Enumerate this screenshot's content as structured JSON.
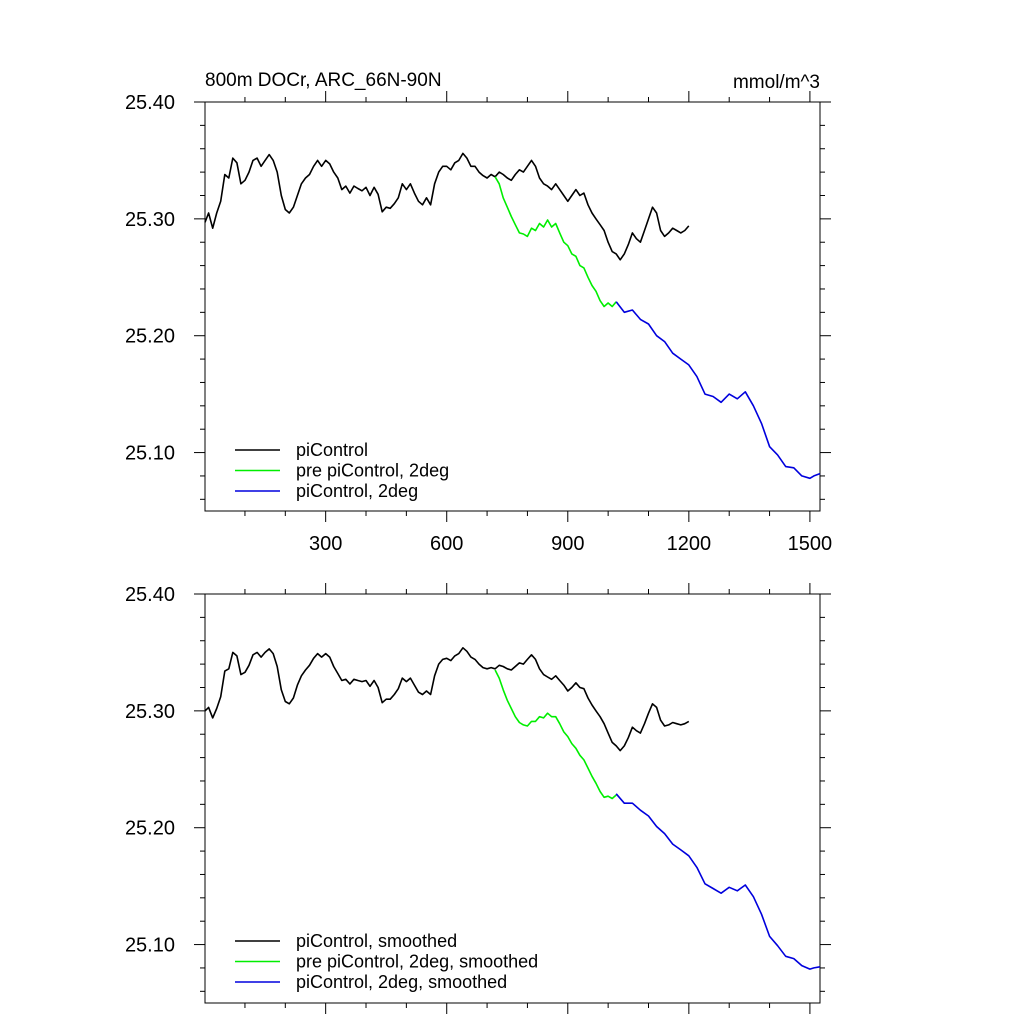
{
  "figure": {
    "title_left": "800m DOCr, ARC_66N-90N",
    "title_right": "mmol/m^3"
  },
  "chart_data": [
    {
      "type": "line",
      "panel": "top",
      "xlim": [
        1,
        1525
      ],
      "ylim": [
        25.05,
        25.4
      ],
      "x_ticks": [
        300,
        600,
        900,
        1200,
        1500
      ],
      "x_tick_labels": [
        "300",
        "600",
        "900",
        "1200",
        "1500"
      ],
      "y_ticks": [
        25.1,
        25.2,
        25.3,
        25.4
      ],
      "y_tick_labels": [
        "25.10",
        "25.20",
        "25.30",
        "25.40"
      ],
      "grid": false,
      "legend_position": "bottom-left",
      "series": [
        {
          "name": "piControl",
          "color": "#000000",
          "x": [
            1,
            10,
            20,
            30,
            40,
            50,
            60,
            70,
            80,
            90,
            100,
            110,
            120,
            130,
            140,
            150,
            160,
            170,
            180,
            190,
            200,
            210,
            220,
            230,
            240,
            250,
            260,
            270,
            280,
            290,
            300,
            310,
            320,
            330,
            340,
            350,
            360,
            370,
            380,
            390,
            400,
            410,
            420,
            430,
            440,
            450,
            460,
            470,
            480,
            490,
            500,
            510,
            520,
            530,
            540,
            550,
            560,
            570,
            580,
            590,
            600,
            610,
            620,
            630,
            640,
            650,
            660,
            670,
            680,
            690,
            700,
            710,
            720,
            730,
            740,
            750,
            760,
            770,
            780,
            790,
            800,
            810,
            820,
            830,
            840,
            850,
            860,
            870,
            880,
            890,
            900,
            910,
            920,
            930,
            940,
            950,
            960,
            970,
            980,
            990,
            1000,
            1010,
            1020,
            1030,
            1040,
            1050,
            1060,
            1070,
            1080,
            1090,
            1100,
            1110,
            1120,
            1130,
            1140,
            1150,
            1160,
            1170,
            1180,
            1190,
            1200
          ],
          "y": [
            25.297,
            25.305,
            25.292,
            25.305,
            25.315,
            25.338,
            25.335,
            25.352,
            25.348,
            25.33,
            25.333,
            25.34,
            25.35,
            25.352,
            25.345,
            25.35,
            25.355,
            25.35,
            25.34,
            25.32,
            25.308,
            25.305,
            25.31,
            25.32,
            25.33,
            25.335,
            25.338,
            25.345,
            25.35,
            25.345,
            25.35,
            25.347,
            25.34,
            25.335,
            25.325,
            25.328,
            25.322,
            25.328,
            25.326,
            25.324,
            25.327,
            25.32,
            25.327,
            25.321,
            25.306,
            25.31,
            25.309,
            25.313,
            25.318,
            25.33,
            25.325,
            25.33,
            25.322,
            25.315,
            25.312,
            25.318,
            25.312,
            25.33,
            25.34,
            25.345,
            25.345,
            25.342,
            25.348,
            25.35,
            25.356,
            25.352,
            25.345,
            25.345,
            25.34,
            25.337,
            25.335,
            25.338,
            25.336,
            25.34,
            25.338,
            25.335,
            25.333,
            25.338,
            25.342,
            25.34,
            25.345,
            25.35,
            25.345,
            25.335,
            25.33,
            25.328,
            25.325,
            25.33,
            25.325,
            25.32,
            25.315,
            25.32,
            25.325,
            25.32,
            25.322,
            25.312,
            25.305,
            25.3,
            25.295,
            25.29,
            25.28,
            25.272,
            25.27,
            25.265,
            25.27,
            25.278,
            25.288,
            25.283,
            25.28,
            25.29,
            25.3,
            25.31,
            25.305,
            25.29,
            25.285,
            25.288,
            25.292,
            25.29,
            25.288,
            25.29,
            25.294
          ]
        },
        {
          "name": "pre piControl, 2deg",
          "color": "#00ee00",
          "x": [
            720,
            730,
            740,
            750,
            760,
            770,
            780,
            790,
            800,
            810,
            820,
            830,
            840,
            850,
            860,
            870,
            880,
            890,
            900,
            910,
            920,
            930,
            940,
            950,
            960,
            970,
            980,
            990,
            1000,
            1010,
            1020
          ],
          "y": [
            25.336,
            25.33,
            25.318,
            25.31,
            25.302,
            25.295,
            25.288,
            25.287,
            25.285,
            25.292,
            25.29,
            25.296,
            25.293,
            25.299,
            25.293,
            25.296,
            25.288,
            25.28,
            25.277,
            25.27,
            25.268,
            25.26,
            25.258,
            25.25,
            25.243,
            25.238,
            25.23,
            25.225,
            25.228,
            25.225,
            25.229
          ]
        },
        {
          "name": "piControl, 2deg",
          "color": "#0000dd",
          "x": [
            1020,
            1040,
            1060,
            1080,
            1100,
            1120,
            1140,
            1160,
            1180,
            1200,
            1220,
            1240,
            1260,
            1280,
            1300,
            1320,
            1340,
            1360,
            1380,
            1400,
            1420,
            1440,
            1460,
            1480,
            1500,
            1510,
            1525
          ],
          "y": [
            25.229,
            25.22,
            25.222,
            25.214,
            25.21,
            25.2,
            25.195,
            25.185,
            25.18,
            25.175,
            25.165,
            25.15,
            25.148,
            25.143,
            25.15,
            25.146,
            25.152,
            25.14,
            25.125,
            25.105,
            25.098,
            25.088,
            25.087,
            25.08,
            25.078,
            25.08,
            25.082
          ]
        }
      ]
    },
    {
      "type": "line",
      "panel": "bottom",
      "xlim": [
        1,
        1525
      ],
      "ylim": [
        25.05,
        25.4
      ],
      "x_ticks": [
        300,
        600,
        900,
        1200,
        1500
      ],
      "y_ticks": [
        25.1,
        25.2,
        25.3,
        25.4
      ],
      "y_tick_labels": [
        "25.10",
        "25.20",
        "25.30",
        "25.40"
      ],
      "grid": false,
      "legend_position": "bottom-left",
      "series": [
        {
          "name": "piControl, smoothed",
          "color": "#000000",
          "x": [
            1,
            10,
            20,
            30,
            40,
            50,
            60,
            70,
            80,
            90,
            100,
            110,
            120,
            130,
            140,
            150,
            160,
            170,
            180,
            190,
            200,
            210,
            220,
            230,
            240,
            250,
            260,
            270,
            280,
            290,
            300,
            310,
            320,
            330,
            340,
            350,
            360,
            370,
            380,
            390,
            400,
            410,
            420,
            430,
            440,
            450,
            460,
            470,
            480,
            490,
            500,
            510,
            520,
            530,
            540,
            550,
            560,
            570,
            580,
            590,
            600,
            610,
            620,
            630,
            640,
            650,
            660,
            670,
            680,
            690,
            700,
            710,
            720,
            730,
            740,
            750,
            760,
            770,
            780,
            790,
            800,
            810,
            820,
            830,
            840,
            850,
            860,
            870,
            880,
            890,
            900,
            910,
            920,
            930,
            940,
            950,
            960,
            970,
            980,
            990,
            1000,
            1010,
            1020,
            1030,
            1040,
            1050,
            1060,
            1070,
            1080,
            1090,
            1100,
            1110,
            1120,
            1130,
            1140,
            1150,
            1160,
            1170,
            1180,
            1190,
            1200
          ],
          "y": [
            25.3,
            25.303,
            25.294,
            25.302,
            25.312,
            25.334,
            25.336,
            25.35,
            25.347,
            25.331,
            25.333,
            25.339,
            25.348,
            25.35,
            25.346,
            25.35,
            25.353,
            25.349,
            25.338,
            25.318,
            25.308,
            25.306,
            25.311,
            25.322,
            25.33,
            25.335,
            25.339,
            25.345,
            25.349,
            25.346,
            25.349,
            25.346,
            25.338,
            25.332,
            25.326,
            25.327,
            25.323,
            25.327,
            25.326,
            25.325,
            25.326,
            25.321,
            25.326,
            25.32,
            25.307,
            25.31,
            25.31,
            25.314,
            25.319,
            25.328,
            25.325,
            25.328,
            25.322,
            25.316,
            25.314,
            25.317,
            25.314,
            25.33,
            25.34,
            25.344,
            25.345,
            25.343,
            25.347,
            25.349,
            25.354,
            25.351,
            25.346,
            25.344,
            25.34,
            25.337,
            25.336,
            25.337,
            25.336,
            25.339,
            25.338,
            25.336,
            25.335,
            25.338,
            25.341,
            25.34,
            25.344,
            25.348,
            25.344,
            25.336,
            25.331,
            25.329,
            25.327,
            25.33,
            25.326,
            25.322,
            25.317,
            25.32,
            25.324,
            25.32,
            25.319,
            25.311,
            25.305,
            25.3,
            25.295,
            25.289,
            25.281,
            25.273,
            25.27,
            25.266,
            25.27,
            25.277,
            25.286,
            25.283,
            25.281,
            25.289,
            25.298,
            25.306,
            25.303,
            25.292,
            25.287,
            25.288,
            25.29,
            25.289,
            25.288,
            25.289,
            25.291
          ]
        },
        {
          "name": "pre piControl, 2deg, smoothed",
          "color": "#00ee00",
          "x": [
            720,
            730,
            740,
            750,
            760,
            770,
            780,
            790,
            800,
            810,
            820,
            830,
            840,
            850,
            860,
            870,
            880,
            890,
            900,
            910,
            920,
            930,
            940,
            950,
            960,
            970,
            980,
            990,
            1000,
            1010,
            1020
          ],
          "y": [
            25.335,
            25.328,
            25.318,
            25.309,
            25.302,
            25.295,
            25.29,
            25.288,
            25.287,
            25.291,
            25.291,
            25.295,
            25.294,
            25.298,
            25.295,
            25.295,
            25.289,
            25.282,
            25.278,
            25.272,
            25.268,
            25.262,
            25.258,
            25.251,
            25.244,
            25.238,
            25.231,
            25.226,
            25.227,
            25.225,
            25.228
          ]
        },
        {
          "name": "piControl, 2deg, smoothed",
          "color": "#0000dd",
          "x": [
            1020,
            1040,
            1060,
            1080,
            1100,
            1120,
            1140,
            1160,
            1180,
            1200,
            1220,
            1240,
            1260,
            1280,
            1300,
            1320,
            1340,
            1360,
            1380,
            1400,
            1420,
            1440,
            1460,
            1480,
            1500,
            1510,
            1525
          ],
          "y": [
            25.229,
            25.221,
            25.221,
            25.215,
            25.21,
            25.201,
            25.195,
            25.186,
            25.181,
            25.176,
            25.166,
            25.152,
            25.148,
            25.144,
            25.149,
            25.146,
            25.151,
            25.141,
            25.126,
            25.107,
            25.099,
            25.09,
            25.088,
            25.082,
            25.079,
            25.08,
            25.081
          ]
        }
      ]
    }
  ]
}
